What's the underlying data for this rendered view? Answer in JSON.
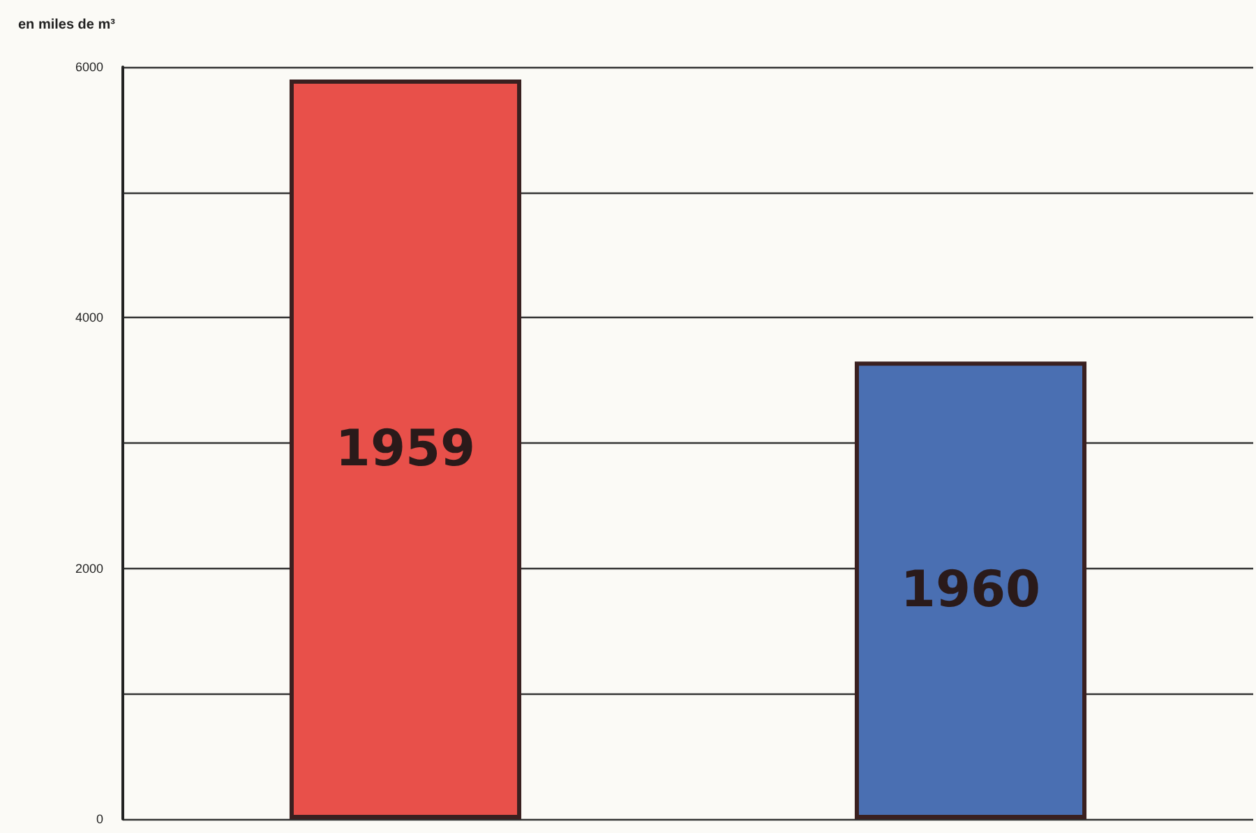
{
  "chart_data": {
    "type": "bar",
    "ylabel": "en miles de m³",
    "categories": [
      "1959",
      "1960"
    ],
    "values": [
      5900,
      3650
    ],
    "colors": [
      "#e8504a",
      "#4a6fb2"
    ],
    "ylim": [
      0,
      6000
    ],
    "yticks": [
      0,
      {
        "value": 1000,
        "label": null
      },
      2000,
      {
        "value": 3000,
        "label": null
      },
      4000,
      {
        "value": 5000,
        "label": null
      },
      6000
    ],
    "grid": "y"
  }
}
